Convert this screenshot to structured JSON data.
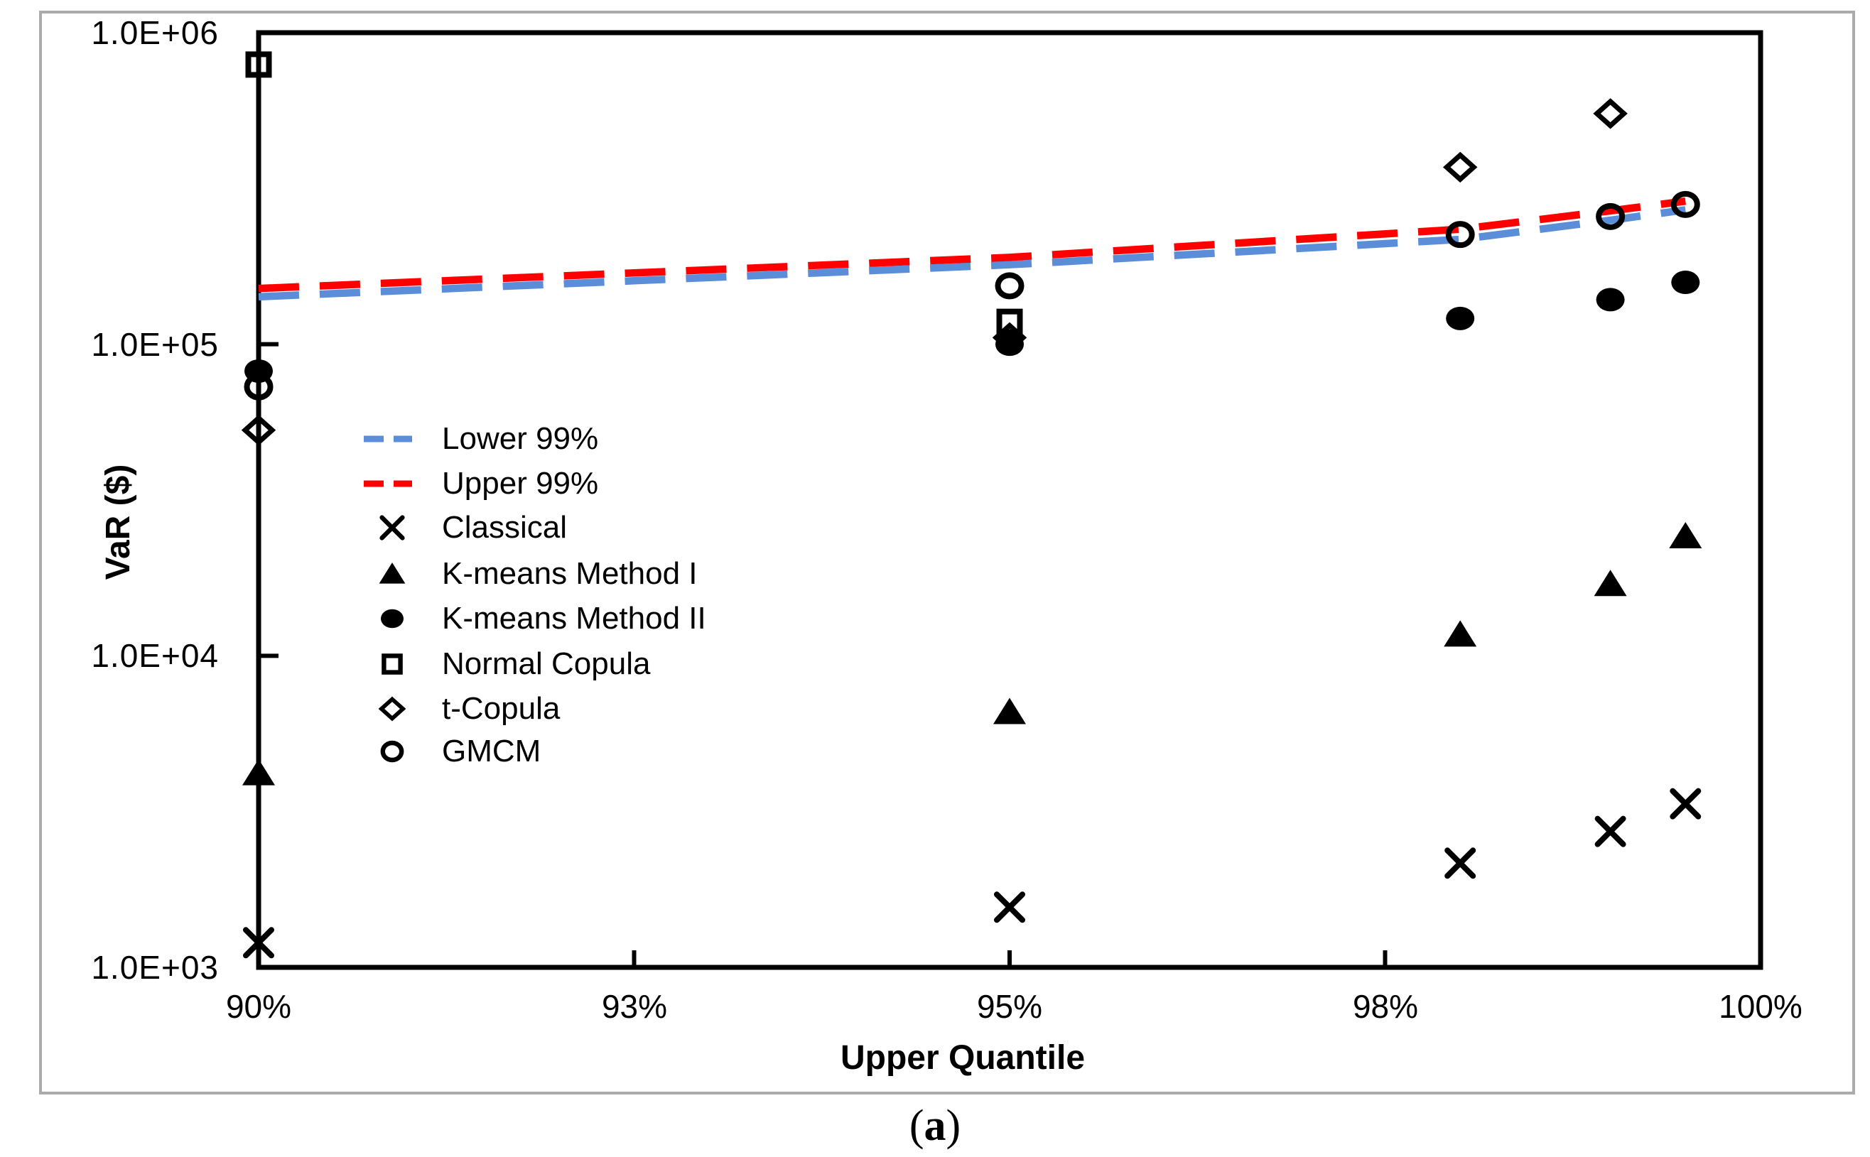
{
  "figure": {
    "caption": {
      "open": "(",
      "letter": "a",
      "close": ")"
    }
  },
  "chart_data": {
    "type": "scatter",
    "title": "",
    "xlabel": "Upper Quantile",
    "ylabel": "VaR ($)",
    "x_axis": {
      "min": 90,
      "max": 100,
      "unit": "%",
      "ticks": [
        {
          "value": 90,
          "label": "90%"
        },
        {
          "value": 92.5,
          "label": "93%"
        },
        {
          "value": 95,
          "label": "95%"
        },
        {
          "value": 97.5,
          "label": "98%"
        },
        {
          "value": 100,
          "label": "100%"
        }
      ]
    },
    "y_axis": {
      "scale": "log",
      "min": 1000,
      "max": 1000000,
      "ticks": [
        {
          "value": 1000000,
          "label": "1.0E+06"
        },
        {
          "value": 100000,
          "label": "1.0E+05"
        },
        {
          "value": 10000,
          "label": "1.0E+04"
        },
        {
          "value": 1000,
          "label": "1.0E+03"
        }
      ]
    },
    "legend_position": "inside-left",
    "grid": false,
    "series": [
      {
        "id": "lower-99",
        "name": "Lower 99%",
        "type": "line",
        "style": "dashed",
        "color": "#5B8DD9",
        "marker": null,
        "points": [
          {
            "x": 90,
            "y": 142000
          },
          {
            "x": 95,
            "y": 180000
          },
          {
            "x": 98,
            "y": 217000
          },
          {
            "x": 99,
            "y": 250000
          },
          {
            "x": 99.5,
            "y": 270000
          }
        ]
      },
      {
        "id": "upper-99",
        "name": "Upper 99%",
        "type": "line",
        "style": "dashed",
        "color": "#FF0000",
        "marker": null,
        "points": [
          {
            "x": 90,
            "y": 151000
          },
          {
            "x": 95,
            "y": 190000
          },
          {
            "x": 98,
            "y": 234000
          },
          {
            "x": 99,
            "y": 268000
          },
          {
            "x": 99.5,
            "y": 288000
          }
        ]
      },
      {
        "id": "classical",
        "name": "Classical",
        "type": "scatter",
        "color": "#000000",
        "marker": "x-cross",
        "points": [
          {
            "x": 90,
            "y": 1200
          },
          {
            "x": 95,
            "y": 1560
          },
          {
            "x": 98,
            "y": 2160
          },
          {
            "x": 99,
            "y": 2730
          },
          {
            "x": 99.5,
            "y": 3350
          }
        ]
      },
      {
        "id": "k-means-method-i",
        "name": "K-means Method I",
        "type": "scatter",
        "color": "#000000",
        "marker": "triangle-filled",
        "points": [
          {
            "x": 90,
            "y": 4200
          },
          {
            "x": 95,
            "y": 6600
          },
          {
            "x": 98,
            "y": 11700
          },
          {
            "x": 99,
            "y": 17000
          },
          {
            "x": 99.5,
            "y": 24200
          }
        ]
      },
      {
        "id": "k-means-method-ii",
        "name": "K-means Method II",
        "type": "scatter",
        "color": "#000000",
        "marker": "circle-filled",
        "points": [
          {
            "x": 90,
            "y": 82000
          },
          {
            "x": 95,
            "y": 100000
          },
          {
            "x": 98,
            "y": 121000
          },
          {
            "x": 99,
            "y": 139000
          },
          {
            "x": 99.5,
            "y": 158000
          }
        ]
      },
      {
        "id": "normal-copula",
        "name": "Normal Copula",
        "type": "scatter",
        "color": "#000000",
        "marker": "square-open",
        "points": [
          {
            "x": 90,
            "y": 790000
          },
          {
            "x": 95,
            "y": 118000
          }
        ]
      },
      {
        "id": "t-copula",
        "name": "t-Copula",
        "type": "scatter",
        "color": "#000000",
        "marker": "diamond-open",
        "points": [
          {
            "x": 90,
            "y": 53000
          },
          {
            "x": 95,
            "y": 105000
          },
          {
            "x": 98,
            "y": 370000
          },
          {
            "x": 99,
            "y": 550000
          }
        ]
      },
      {
        "id": "gmcm",
        "name": "GMCM",
        "type": "scatter",
        "color": "#000000",
        "marker": "circle-open",
        "points": [
          {
            "x": 90,
            "y": 73000
          },
          {
            "x": 95,
            "y": 154000
          },
          {
            "x": 98,
            "y": 225000
          },
          {
            "x": 99,
            "y": 257000
          },
          {
            "x": 99.5,
            "y": 281000
          }
        ]
      }
    ]
  }
}
